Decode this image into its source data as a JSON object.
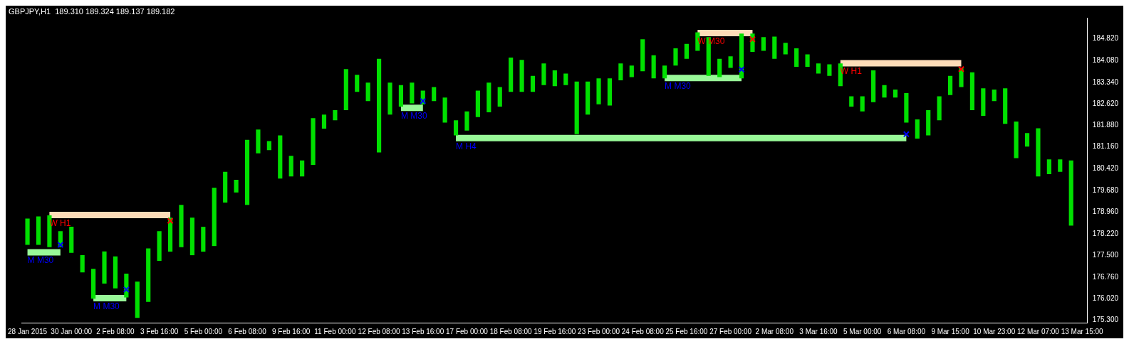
{
  "chart_data": {
    "type": "bar",
    "title": "GBPJPY,H1  189.310 189.324 189.137 189.182",
    "categories": [
      "28 Jan 2015",
      null,
      null,
      null,
      "30 Jan 00:00",
      null,
      null,
      null,
      "2 Feb 08:00",
      null,
      null,
      null,
      "3 Feb 16:00",
      null,
      null,
      null,
      "5 Feb 00:00",
      null,
      null,
      null,
      "6 Feb 08:00",
      null,
      null,
      null,
      "9 Feb 16:00",
      null,
      null,
      null,
      "11 Feb 00:00",
      null,
      null,
      null,
      "12 Feb 08:00",
      null,
      null,
      null,
      "13 Feb 16:00",
      null,
      null,
      null,
      "17 Feb 00:00",
      null,
      null,
      null,
      "18 Feb 08:00",
      null,
      null,
      null,
      "19 Feb 16:00",
      null,
      null,
      null,
      "23 Feb 00:00",
      null,
      null,
      null,
      "24 Feb 08:00",
      null,
      null,
      null,
      "25 Feb 16:00",
      null,
      null,
      null,
      "27 Feb 00:00",
      null,
      null,
      null,
      "2 Mar 08:00",
      null,
      null,
      null,
      "3 Mar 16:00",
      null,
      null,
      null,
      "5 Mar 00:00",
      null,
      null,
      null,
      "6 Mar 08:00",
      null,
      null,
      null,
      "9 Mar 15:00",
      null,
      null,
      null,
      "10 Mar 23:00",
      null,
      null,
      null,
      "12 Mar 07:00",
      null,
      null,
      null,
      "13 Mar 15:00"
    ],
    "series": [
      {
        "color": "#00e000",
        "base": [
          177.85,
          177.85,
          177.77,
          177.77,
          177.58,
          176.92,
          176.03,
          176.54,
          176.38,
          176.07,
          175.38,
          175.92,
          177.31,
          177.62,
          177.77,
          177.5,
          177.62,
          177.81,
          179.28,
          179.62,
          179.2,
          180.94,
          181.05,
          180.09,
          180.16,
          180.16,
          180.55,
          181.78,
          182.06,
          182.4,
          183.02,
          182.71,
          180.97,
          182.25,
          182.52,
          182.63,
          182.6,
          182.71,
          181.98,
          181.55,
          181.71,
          182.17,
          182.33,
          182.52,
          183.02,
          183.02,
          183.02,
          183.25,
          183.21,
          183.25,
          181.59,
          182.25,
          182.6,
          182.56,
          183.41,
          183.52,
          183.72,
          183.48,
          183.48,
          183.91,
          184.14,
          184.41,
          183.56,
          183.52,
          183.83,
          183.48,
          184.37,
          184.41,
          184.14,
          184.29,
          183.87,
          183.87,
          183.64,
          183.56,
          183.21,
          182.52,
          182.36,
          182.67,
          182.83,
          182.83,
          181.98,
          181.44,
          181.55,
          182.06,
          182.91,
          183.18,
          182.4,
          182.21,
          182.71,
          181.94,
          180.78,
          181.17,
          180.16,
          180.24,
          180.32,
          178.5,
          null
        ],
        "values": [
          0.89,
          0.96,
          1.08,
          0.54,
          0.88,
          0.58,
          1.01,
          1.09,
          1.08,
          0.81,
          1.23,
          1.81,
          1.0,
          1.15,
          1.43,
          1.27,
          0.84,
          1.97,
          1.04,
          0.43,
          2.2,
          0.81,
          0.31,
          1.46,
          0.7,
          0.54,
          1.58,
          0.47,
          0.34,
          1.39,
          0.58,
          0.62,
          3.17,
          1.08,
          0.73,
          0.7,
          0.46,
          0.47,
          0.85,
          0.51,
          0.65,
          0.89,
          1.0,
          0.66,
          1.16,
          1.08,
          0.54,
          0.73,
          0.54,
          0.39,
          1.78,
          1.12,
          0.88,
          0.92,
          0.57,
          0.39,
          1.08,
          0.78,
          0.43,
          0.58,
          0.5,
          0.62,
          1.31,
          0.62,
          0.39,
          1.51,
          0.62,
          0.46,
          0.75,
          0.39,
          0.62,
          0.42,
          0.34,
          0.39,
          0.77,
          0.35,
          0.51,
          1.08,
          0.42,
          0.27,
          1.0,
          0.65,
          0.85,
          0.81,
          0.65,
          0.65,
          1.28,
          0.93,
          0.39,
          1.2,
          1.24,
          0.46,
          1.63,
          0.5,
          0.42,
          2.2,
          null
        ]
      },
      {
        "type": "line",
        "name": "W H1",
        "color": "#fddcb8",
        "values": [
          null,
          null,
          178.86,
          178.86,
          178.86,
          178.86,
          178.86,
          178.86,
          178.86,
          178.86,
          178.86,
          178.86,
          178.86,
          178.86,
          null,
          null,
          null,
          null,
          null,
          null,
          null,
          null,
          null,
          null,
          null,
          null,
          null,
          null,
          null,
          null,
          null,
          null,
          null,
          null,
          null,
          null,
          null,
          null,
          null,
          null,
          null,
          null,
          null,
          null,
          null,
          null,
          null,
          null,
          null,
          null,
          null,
          null,
          null,
          null,
          null,
          null,
          null,
          null,
          null,
          null,
          null,
          null,
          null,
          null,
          null,
          null,
          null,
          null,
          null,
          null,
          null,
          null,
          null,
          null,
          183.99,
          183.99,
          183.99,
          183.99,
          183.99,
          183.99,
          183.99,
          183.99,
          183.99,
          183.99,
          183.99,
          183.99,
          null,
          null,
          null,
          null,
          null,
          null,
          null,
          null,
          null,
          null,
          null
        ]
      },
      {
        "type": "line",
        "name": "M M30",
        "color": "#98f898",
        "values": [
          177.6,
          177.6,
          177.6,
          177.6,
          null,
          null,
          176.05,
          176.05,
          176.05,
          176.05,
          null,
          null,
          null,
          null,
          null,
          null,
          null,
          null,
          null,
          null,
          null,
          null,
          null,
          null,
          null,
          null,
          null,
          null,
          null,
          null,
          null,
          null,
          null,
          null,
          182.48,
          182.48,
          182.48,
          null,
          null,
          null,
          null,
          null,
          null,
          null,
          null,
          null,
          null,
          null,
          null,
          null,
          null,
          null,
          null,
          null,
          null,
          null,
          null,
          null,
          183.49,
          183.49,
          183.49,
          183.49,
          183.49,
          183.49,
          183.49,
          183.49,
          null,
          null,
          null,
          null,
          null,
          null,
          null,
          null,
          null,
          null,
          null,
          null,
          null,
          null,
          null,
          null,
          null,
          null,
          null,
          null,
          null,
          null,
          null,
          null,
          null,
          null,
          null,
          null,
          null,
          null,
          null
        ]
      },
      {
        "type": "line",
        "name": "M H4",
        "color": "#98f898",
        "values": [
          null,
          null,
          null,
          null,
          null,
          null,
          null,
          null,
          null,
          null,
          null,
          null,
          null,
          null,
          null,
          null,
          null,
          null,
          null,
          null,
          null,
          null,
          null,
          null,
          null,
          null,
          null,
          null,
          null,
          null,
          null,
          null,
          null,
          null,
          null,
          null,
          null,
          null,
          null,
          181.46,
          181.46,
          181.46,
          181.46,
          181.46,
          181.46,
          181.46,
          181.46,
          181.46,
          181.46,
          181.46,
          181.46,
          181.46,
          181.46,
          181.46,
          181.46,
          181.46,
          181.46,
          181.46,
          181.46,
          181.46,
          181.46,
          181.46,
          181.46,
          181.46,
          181.46,
          181.46,
          181.46,
          181.46,
          181.46,
          181.46,
          181.46,
          181.46,
          181.46,
          181.46,
          181.46,
          181.46,
          181.46,
          181.46,
          181.46,
          181.46,
          181.46,
          null,
          null,
          null,
          null,
          null,
          null,
          null,
          null,
          null,
          null,
          null,
          null,
          null,
          null,
          null,
          null
        ]
      },
      {
        "type": "line",
        "name": "W M30",
        "color": "#fddcb8",
        "values": [
          null,
          null,
          null,
          null,
          null,
          null,
          null,
          null,
          null,
          null,
          null,
          null,
          null,
          null,
          null,
          null,
          null,
          null,
          null,
          null,
          null,
          null,
          null,
          null,
          null,
          null,
          null,
          null,
          null,
          null,
          null,
          null,
          null,
          null,
          null,
          null,
          null,
          null,
          null,
          null,
          null,
          null,
          null,
          null,
          null,
          null,
          null,
          null,
          null,
          null,
          null,
          null,
          null,
          null,
          null,
          null,
          null,
          null,
          null,
          null,
          null,
          185.01,
          185.01,
          185.01,
          185.01,
          185.01,
          185.01,
          null,
          null,
          null,
          null,
          null,
          null,
          null,
          null,
          null,
          null,
          null,
          null,
          null,
          null,
          null,
          null,
          null,
          null,
          null,
          null,
          null,
          null,
          null,
          null,
          null,
          null,
          null,
          null,
          null,
          null
        ]
      },
      {
        "type": "scatter",
        "marker": "cross",
        "color": "#ff0000",
        "values": [
          null,
          null,
          null,
          null,
          null,
          null,
          null,
          null,
          null,
          null,
          null,
          null,
          null,
          178.66,
          null,
          null,
          null,
          null,
          null,
          null,
          null,
          null,
          null,
          null,
          null,
          null,
          null,
          null,
          null,
          null,
          null,
          null,
          null,
          null,
          null,
          null,
          null,
          null,
          null,
          null,
          null,
          null,
          null,
          null,
          null,
          null,
          null,
          null,
          null,
          null,
          null,
          null,
          null,
          null,
          null,
          null,
          null,
          null,
          null,
          null,
          null,
          null,
          null,
          null,
          null,
          null,
          184.8,
          null,
          null,
          null,
          null,
          null,
          null,
          null,
          null,
          null,
          null,
          null,
          null,
          null,
          null,
          null,
          null,
          null,
          null,
          183.79,
          null,
          null,
          null,
          null,
          null,
          null,
          null,
          null,
          null,
          null,
          null
        ]
      },
      {
        "type": "scatter",
        "marker": "cross",
        "color": "#0000ff",
        "values": [
          null,
          null,
          null,
          177.85,
          null,
          null,
          null,
          null,
          null,
          176.34,
          null,
          null,
          null,
          null,
          null,
          null,
          null,
          null,
          null,
          null,
          null,
          null,
          null,
          null,
          null,
          null,
          null,
          null,
          null,
          null,
          null,
          null,
          null,
          null,
          null,
          null,
          182.71,
          null,
          null,
          null,
          null,
          null,
          null,
          null,
          null,
          null,
          null,
          null,
          null,
          null,
          null,
          null,
          null,
          null,
          null,
          null,
          null,
          null,
          null,
          null,
          null,
          null,
          null,
          null,
          null,
          183.78,
          null,
          null,
          null,
          null,
          null,
          null,
          null,
          null,
          null,
          null,
          null,
          null,
          null,
          null,
          181.59,
          null,
          null,
          null,
          null,
          null,
          null,
          null,
          null,
          null,
          null,
          null,
          null,
          null,
          null,
          null,
          null
        ]
      }
    ],
    "ylim": [
      175.22,
      185.52
    ],
    "yticks": [
      {
        "value": 184.82,
        "label": "184.820"
      },
      {
        "value": 184.08,
        "label": "184.080"
      },
      {
        "value": 183.34,
        "label": "183.340"
      },
      {
        "value": 182.62,
        "label": "182.620"
      },
      {
        "value": 181.88,
        "label": "181.880"
      },
      {
        "value": 181.16,
        "label": "181.160"
      },
      {
        "value": 180.42,
        "label": "180.420"
      },
      {
        "value": 179.68,
        "label": "179.680"
      },
      {
        "value": 178.96,
        "label": "178.960"
      },
      {
        "value": 178.22,
        "label": "178.220"
      },
      {
        "value": 177.5,
        "label": "177.500"
      },
      {
        "value": 176.76,
        "label": "176.760"
      },
      {
        "value": 176.02,
        "label": "176.020"
      },
      {
        "value": 175.3,
        "label": "175.300"
      }
    ]
  }
}
